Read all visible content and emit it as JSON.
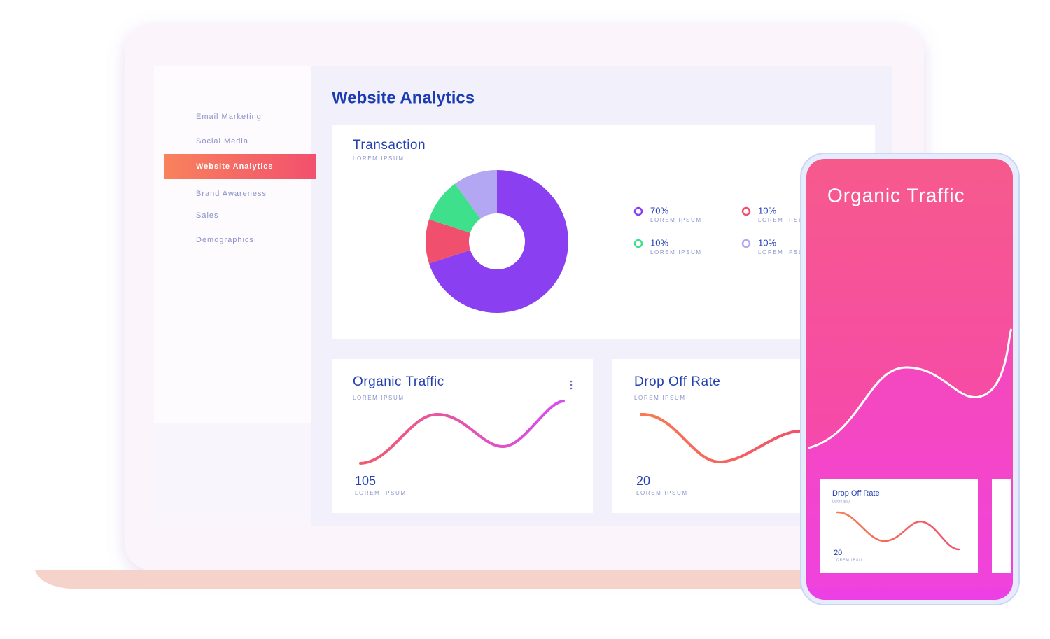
{
  "sidebar": {
    "items": [
      "Email Marketing",
      "Social Media",
      "Website Analytics",
      "Brand Awareness",
      "Sales",
      "Demographics"
    ],
    "active": 2
  },
  "header": {
    "title": "Website Analytics"
  },
  "transaction": {
    "title": "Transaction",
    "subtitle": "LOREM IPSUM",
    "chart_data": {
      "type": "pie",
      "categories": [
        "LOREM IPSUM",
        "LOREM IPSUM",
        "LOREM IPSUM",
        "LOREM IPSUM"
      ],
      "values": [
        70,
        10,
        10,
        10
      ],
      "value_labels": [
        "70%",
        "10%",
        "10%",
        "10%"
      ],
      "colors": [
        "#8a3ff0",
        "#f0506e",
        "#3fe08c",
        "#b3a6f2"
      ]
    }
  },
  "organic_card": {
    "title": "Organic Traffic",
    "subtitle": "LOREM IPSUM",
    "value": 105,
    "caption": "LOREM IPSUM"
  },
  "dropoff_card": {
    "title": "Drop Off Rate",
    "subtitle": "LOREM IPSUM",
    "value": 20,
    "caption": "LOREM IPSUM"
  },
  "phone": {
    "title": "Organic Traffic",
    "card": {
      "title": "Drop Off Rate",
      "subtitle": "Lorem ipsu",
      "value": 20,
      "caption": "LOREM IPSU"
    }
  }
}
